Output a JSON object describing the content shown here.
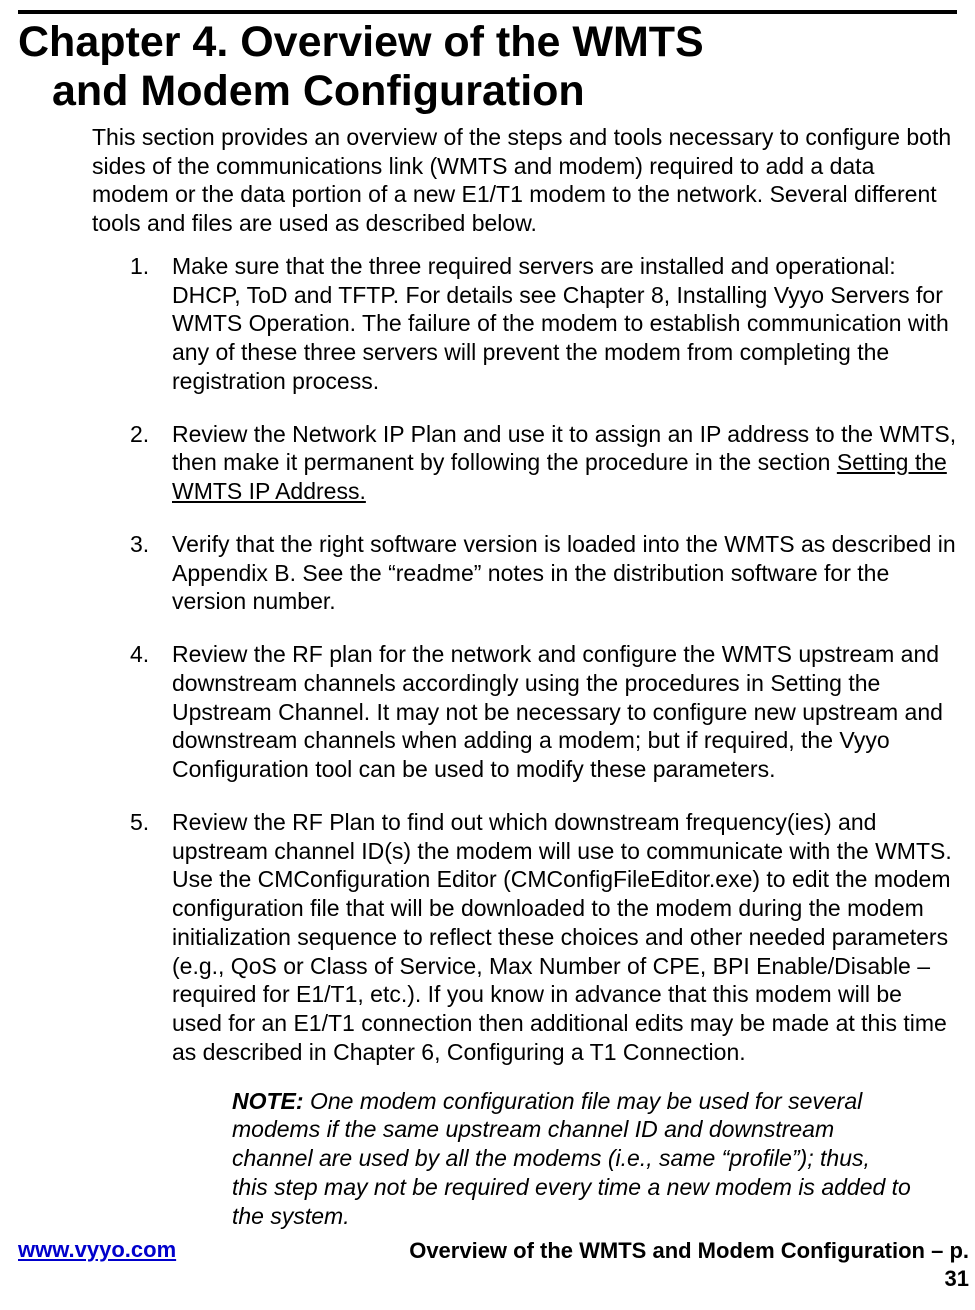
{
  "chapter": {
    "title_line1": "Chapter 4. Overview of the WMTS",
    "title_line2": "and Modem Configuration"
  },
  "intro": "This section provides an overview of the steps and tools necessary to configure both sides of the communications link (WMTS and modem) required to add a data modem or the data portion of a new E1/T1 modem to the network.  Several different tools and files are used as described below.",
  "steps": {
    "s1": {
      "num": "1.",
      "text": "Make sure that the three required servers are installed and operational: DHCP, ToD and TFTP.  For details see Chapter 8, Installing Vyyo Servers for WMTS Operation.  The failure of the modem to establish communication with any of these three servers will prevent the modem from completing the registration process."
    },
    "s2": {
      "num": "2.",
      "pre": "Review the Network IP Plan and use it to assign an IP address to the WMTS, then make it permanent by following the procedure in the section ",
      "link": "Setting the WMTS IP Address."
    },
    "s3": {
      "num": "3.",
      "text": "Verify that the right software version is loaded into the WMTS as described in Appendix B.  See the “readme” notes in the distribution software for the version number."
    },
    "s4": {
      "num": "4.",
      "text": "Review the RF plan for the network and configure the WMTS upstream and downstream channels accordingly using the procedures in Setting the Upstream Channel. It may not be necessary to configure new upstream and downstream channels when adding a modem; but if required, the Vyyo Configuration tool can be used to modify these parameters."
    },
    "s5": {
      "num": "5.",
      "text": "Review the RF Plan to find out which downstream frequency(ies) and upstream channel ID(s) the modem will use to communicate with the WMTS.  Use the CMConfiguration Editor (CMConfigFileEditor.exe) to edit the modem configuration file that will be downloaded to the modem during the modem initialization sequence to reflect these choices and other needed parameters (e.g., QoS or Class of Service, Max Number of CPE, BPI Enable/Disable – required for E1/T1, etc.).  If you know in advance that this modem will be used for an E1/T1 connection then additional edits may be made at this time as described in Chapter 6, Configuring a T1 Connection."
    }
  },
  "note": {
    "label": "NOTE:",
    "text": " One modem configuration file may be used for several modems if the same upstream channel ID and downstream channel are used by all the modems (i.e., same “profile”); thus, this step may not be required every time a new modem is added to the system."
  },
  "footer": {
    "website": "www.vyyo.com",
    "right_line1": "Overview of the WMTS and Modem Configuration – p.",
    "right_line2": "31"
  },
  "colors": {
    "text": "#000000",
    "background": "#ffffff",
    "link": "#0000cc"
  }
}
